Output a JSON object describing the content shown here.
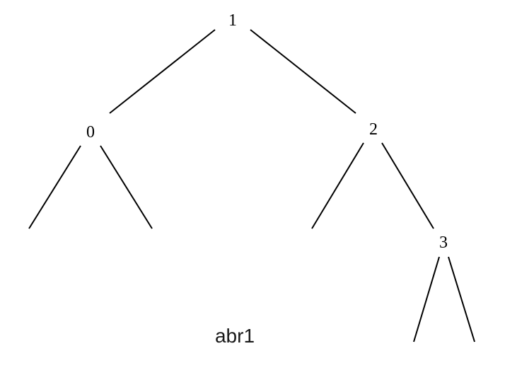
{
  "tree": {
    "nodes": [
      {
        "id": "n1",
        "label": "1"
      },
      {
        "id": "n0",
        "label": "0"
      },
      {
        "id": "n2",
        "label": "2"
      },
      {
        "id": "n3",
        "label": "3"
      }
    ],
    "edges": [
      {
        "from": "n1",
        "to": "n0"
      },
      {
        "from": "n1",
        "to": "n2"
      },
      {
        "from": "n0",
        "to": "null"
      },
      {
        "from": "n0",
        "to": "null"
      },
      {
        "from": "n2",
        "to": "null"
      },
      {
        "from": "n2",
        "to": "n3"
      },
      {
        "from": "n3",
        "to": "null"
      },
      {
        "from": "n3",
        "to": "null"
      }
    ]
  },
  "caption": "abr1"
}
